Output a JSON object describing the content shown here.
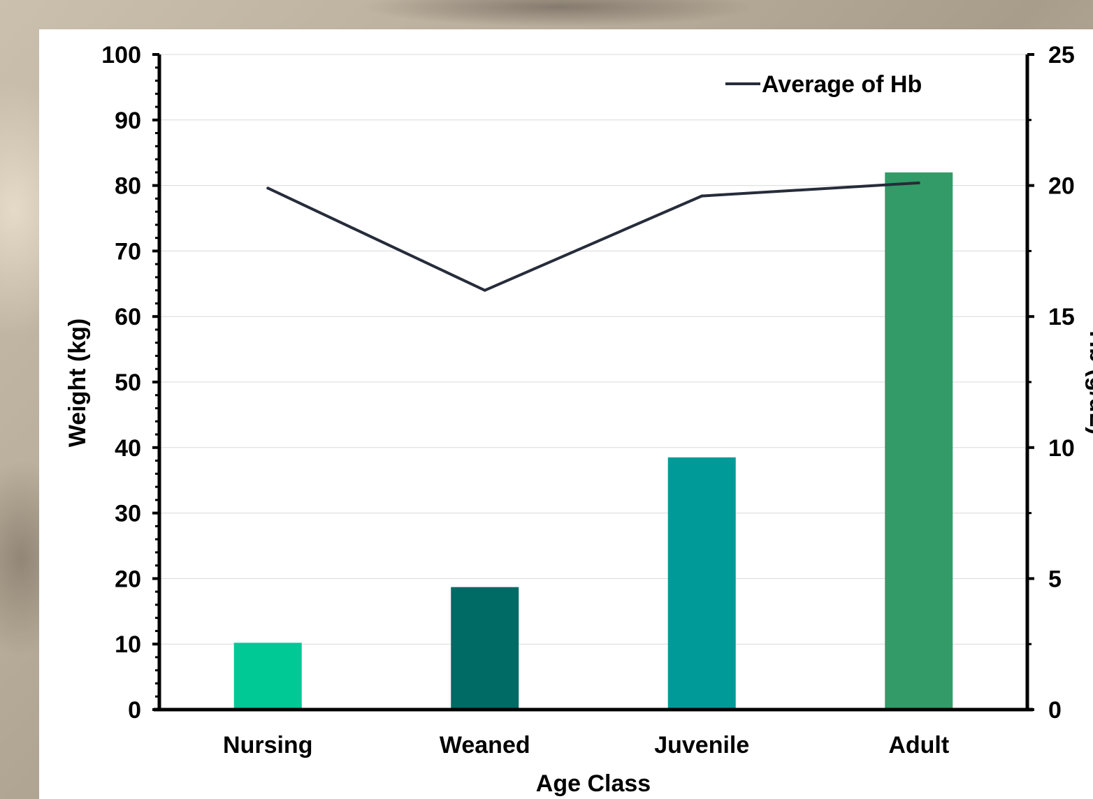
{
  "chart_data": {
    "type": "bar",
    "categories": [
      "Nursing",
      "Weaned",
      "Juvenile",
      "Adult"
    ],
    "xlabel": "Age Class",
    "ylabel": "Weight (kg)",
    "y2label": "Hb (g/dL)",
    "ylim": [
      0,
      100
    ],
    "y2lim": [
      0,
      25
    ],
    "y_ticks": [
      "0",
      "10",
      "20",
      "30",
      "40",
      "50",
      "60",
      "70",
      "80",
      "90",
      "100"
    ],
    "y2_ticks": [
      "0",
      "5",
      "10",
      "15",
      "20",
      "25"
    ],
    "grid": true,
    "legend_position": "top-right",
    "series": [
      {
        "kind": "bar",
        "axis": "left",
        "values": [
          10.2,
          18.7,
          38.5,
          82.0
        ],
        "colors": [
          "#00c996",
          "#006a65",
          "#009b98",
          "#339b67"
        ]
      },
      {
        "kind": "line",
        "axis": "right",
        "name": "Average of Hb",
        "values": [
          19.9,
          16.0,
          19.6,
          20.1
        ],
        "color": "#262c3a"
      }
    ]
  }
}
